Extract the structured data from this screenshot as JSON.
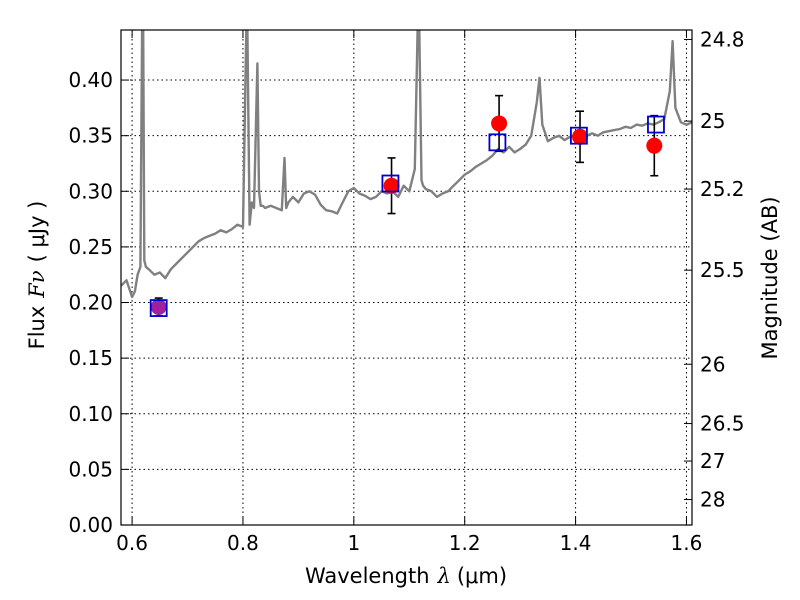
{
  "chart_data": {
    "type": "scatter",
    "xlabel": "Wavelength",
    "xlabel_symbol": "λ",
    "xlabel_unit": "(μm)",
    "ylabel": "Flux",
    "ylabel_symbol": "Fν",
    "ylabel_unit": "( μJy )",
    "y2label": "Magnitude (AB)",
    "xlim": [
      0.58,
      1.61
    ],
    "ylim": [
      0.0,
      0.445
    ],
    "grid": true,
    "grid_style": "dotted",
    "x_ticks": [
      0.6,
      0.8,
      1.0,
      1.2,
      1.4,
      1.6
    ],
    "x_tick_labels": [
      "0.6",
      "0.8",
      "1",
      "1.2",
      "1.4",
      "1.6"
    ],
    "y_ticks": [
      0.0,
      0.05,
      0.1,
      0.15,
      0.2,
      0.25,
      0.3,
      0.35,
      0.4
    ],
    "y_tick_labels": [
      "0.00",
      "0.05",
      "0.10",
      "0.15",
      "0.20",
      "0.25",
      "0.30",
      "0.35",
      "0.40"
    ],
    "y2_ticks": [
      {
        "flux": 0.4365,
        "label": "24.8"
      },
      {
        "flux": 0.3631,
        "label": "25"
      },
      {
        "flux": 0.302,
        "label": "25.2"
      },
      {
        "flux": 0.2291,
        "label": "25.5"
      },
      {
        "flux": 0.1445,
        "label": "26"
      },
      {
        "flux": 0.0912,
        "label": "26.5"
      },
      {
        "flux": 0.0575,
        "label": "27"
      },
      {
        "flux": 0.0229,
        "label": "28"
      }
    ],
    "colors": {
      "model": "#808080",
      "observed": "#ff0000",
      "model_photometry": "#0000cc",
      "errorbar": "#000000",
      "blend": "#a020a0"
    },
    "series": [
      {
        "kind": "model_spectrum",
        "x": [
          0.58,
          0.59,
          0.6,
          0.605,
          0.61,
          0.615,
          0.618,
          0.62,
          0.622,
          0.625,
          0.63,
          0.64,
          0.65,
          0.66,
          0.67,
          0.68,
          0.69,
          0.7,
          0.71,
          0.72,
          0.73,
          0.74,
          0.75,
          0.76,
          0.77,
          0.78,
          0.79,
          0.8,
          0.806,
          0.808,
          0.812,
          0.816,
          0.82,
          0.826,
          0.829,
          0.832,
          0.836,
          0.84,
          0.85,
          0.86,
          0.87,
          0.875,
          0.878,
          0.882,
          0.89,
          0.9,
          0.91,
          0.92,
          0.93,
          0.94,
          0.95,
          0.96,
          0.97,
          0.98,
          0.99,
          1.0,
          1.01,
          1.02,
          1.03,
          1.04,
          1.05,
          1.06,
          1.07,
          1.08,
          1.09,
          1.1,
          1.11,
          1.115,
          1.118,
          1.122,
          1.125,
          1.13,
          1.14,
          1.15,
          1.16,
          1.17,
          1.18,
          1.19,
          1.2,
          1.21,
          1.22,
          1.23,
          1.24,
          1.25,
          1.26,
          1.27,
          1.28,
          1.29,
          1.3,
          1.31,
          1.32,
          1.33,
          1.335,
          1.34,
          1.35,
          1.36,
          1.37,
          1.38,
          1.39,
          1.4,
          1.41,
          1.42,
          1.43,
          1.44,
          1.45,
          1.46,
          1.47,
          1.48,
          1.49,
          1.5,
          1.51,
          1.52,
          1.53,
          1.54,
          1.55,
          1.56,
          1.57,
          1.575,
          1.58,
          1.59,
          1.6,
          1.61
        ],
        "y": [
          0.215,
          0.22,
          0.205,
          0.21,
          0.225,
          0.232,
          0.445,
          0.445,
          0.238,
          0.232,
          0.23,
          0.225,
          0.227,
          0.222,
          0.23,
          0.235,
          0.24,
          0.245,
          0.25,
          0.255,
          0.258,
          0.26,
          0.262,
          0.265,
          0.263,
          0.266,
          0.27,
          0.268,
          0.445,
          0.445,
          0.27,
          0.29,
          0.285,
          0.415,
          0.3,
          0.287,
          0.287,
          0.285,
          0.287,
          0.285,
          0.283,
          0.33,
          0.285,
          0.29,
          0.295,
          0.29,
          0.298,
          0.3,
          0.297,
          0.288,
          0.283,
          0.282,
          0.28,
          0.29,
          0.3,
          0.303,
          0.298,
          0.296,
          0.293,
          0.295,
          0.3,
          0.298,
          0.3,
          0.295,
          0.305,
          0.3,
          0.32,
          0.445,
          0.445,
          0.31,
          0.305,
          0.302,
          0.3,
          0.295,
          0.298,
          0.3,
          0.305,
          0.31,
          0.315,
          0.318,
          0.322,
          0.325,
          0.328,
          0.332,
          0.338,
          0.335,
          0.34,
          0.335,
          0.338,
          0.342,
          0.35,
          0.38,
          0.402,
          0.36,
          0.345,
          0.348,
          0.35,
          0.346,
          0.349,
          0.35,
          0.348,
          0.35,
          0.352,
          0.35,
          0.353,
          0.354,
          0.355,
          0.356,
          0.358,
          0.357,
          0.36,
          0.359,
          0.361,
          0.36,
          0.362,
          0.365,
          0.39,
          0.435,
          0.375,
          0.362,
          0.36,
          0.362
        ]
      },
      {
        "kind": "observed",
        "x": [
          0.648,
          1.068,
          1.262,
          1.408,
          1.542
        ],
        "y": [
          0.196,
          0.305,
          0.361,
          0.349,
          0.341
        ],
        "yerr": [
          0.008,
          0.025,
          0.025,
          0.023,
          0.027
        ]
      },
      {
        "kind": "model_photometry",
        "x": [
          0.648,
          1.066,
          1.259,
          1.406,
          1.545
        ],
        "y": [
          0.195,
          0.307,
          0.344,
          0.35,
          0.36
        ]
      }
    ]
  }
}
